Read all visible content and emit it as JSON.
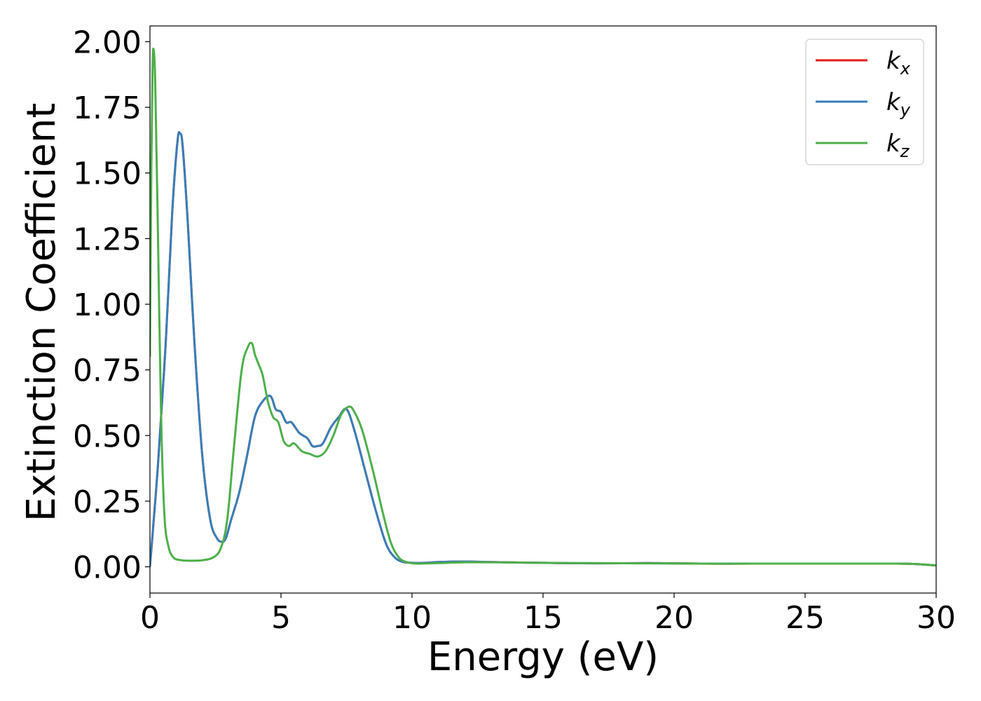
{
  "chart_data": {
    "type": "line",
    "title": "",
    "xlabel": "Energy (eV)",
    "ylabel": "Extinction Coefficient",
    "xlim": [
      0,
      30
    ],
    "ylim": [
      -0.1,
      2.06
    ],
    "xticks": [
      0,
      5,
      10,
      15,
      20,
      25,
      30
    ],
    "xtick_labels": [
      "0",
      "5",
      "10",
      "15",
      "20",
      "25",
      "30"
    ],
    "yticks": [
      0,
      0.25,
      0.5,
      0.75,
      1.0,
      1.25,
      1.5,
      1.75,
      2.0
    ],
    "ytick_labels": [
      "0.00",
      "0.25",
      "0.50",
      "0.75",
      "1.00",
      "1.25",
      "1.50",
      "1.75",
      "2.00"
    ],
    "grid": false,
    "legend_position": "top-right",
    "series": [
      {
        "name": "k_x",
        "legend_main": "k",
        "legend_sub": "x",
        "color": "#e41a1c",
        "x": [
          0,
          0.3,
          0.6,
          0.85,
          1.05,
          1.15,
          1.25,
          1.45,
          1.7,
          2.0,
          2.3,
          2.55,
          2.75,
          2.9,
          3.1,
          3.4,
          3.7,
          4.0,
          4.3,
          4.6,
          4.8,
          5.0,
          5.2,
          5.4,
          5.7,
          6.0,
          6.2,
          6.4,
          6.6,
          6.9,
          7.2,
          7.5,
          7.8,
          8.2,
          8.6,
          9.0,
          9.3,
          9.6,
          10.0,
          10.5,
          11.0,
          12.0,
          13.0,
          15.0,
          17.0,
          19.0,
          21.0,
          23.0,
          25.0,
          27.0,
          28.5,
          29.3,
          30.0
        ],
        "values": [
          0.0,
          0.38,
          0.85,
          1.35,
          1.62,
          1.65,
          1.6,
          1.3,
          0.85,
          0.42,
          0.18,
          0.11,
          0.095,
          0.11,
          0.18,
          0.28,
          0.42,
          0.57,
          0.63,
          0.65,
          0.6,
          0.59,
          0.55,
          0.55,
          0.51,
          0.49,
          0.46,
          0.46,
          0.47,
          0.53,
          0.57,
          0.6,
          0.52,
          0.37,
          0.22,
          0.09,
          0.04,
          0.02,
          0.015,
          0.015,
          0.018,
          0.02,
          0.018,
          0.015,
          0.013,
          0.014,
          0.012,
          0.012,
          0.012,
          0.012,
          0.012,
          0.01,
          0.005
        ]
      },
      {
        "name": "k_y",
        "legend_main": "k",
        "legend_sub": "y",
        "color": "#377eb8",
        "x": [
          0,
          0.3,
          0.6,
          0.85,
          1.05,
          1.15,
          1.25,
          1.45,
          1.7,
          2.0,
          2.3,
          2.55,
          2.75,
          2.9,
          3.1,
          3.4,
          3.7,
          4.0,
          4.3,
          4.6,
          4.8,
          5.0,
          5.2,
          5.4,
          5.7,
          6.0,
          6.2,
          6.4,
          6.6,
          6.9,
          7.2,
          7.5,
          7.8,
          8.2,
          8.6,
          9.0,
          9.3,
          9.6,
          10.0,
          10.5,
          11.0,
          12.0,
          13.0,
          15.0,
          17.0,
          19.0,
          21.0,
          23.0,
          25.0,
          27.0,
          28.5,
          29.3,
          30.0
        ],
        "values": [
          0.0,
          0.38,
          0.85,
          1.35,
          1.62,
          1.65,
          1.6,
          1.3,
          0.85,
          0.42,
          0.18,
          0.11,
          0.095,
          0.11,
          0.18,
          0.28,
          0.42,
          0.57,
          0.63,
          0.65,
          0.6,
          0.59,
          0.55,
          0.55,
          0.51,
          0.49,
          0.46,
          0.46,
          0.47,
          0.53,
          0.57,
          0.6,
          0.52,
          0.37,
          0.22,
          0.09,
          0.04,
          0.02,
          0.015,
          0.015,
          0.018,
          0.02,
          0.018,
          0.015,
          0.013,
          0.014,
          0.012,
          0.012,
          0.012,
          0.012,
          0.012,
          0.01,
          0.005
        ]
      },
      {
        "name": "k_z",
        "legend_main": "k",
        "legend_sub": "z",
        "color": "#4daf4a",
        "x": [
          0,
          0.05,
          0.1,
          0.14,
          0.2,
          0.3,
          0.42,
          0.55,
          0.7,
          0.9,
          1.2,
          1.6,
          2.0,
          2.4,
          2.7,
          2.95,
          3.2,
          3.5,
          3.75,
          3.9,
          4.0,
          4.15,
          4.3,
          4.5,
          4.7,
          4.9,
          5.1,
          5.3,
          5.5,
          5.8,
          6.1,
          6.4,
          6.7,
          7.0,
          7.3,
          7.6,
          7.8,
          8.1,
          8.5,
          8.9,
          9.2,
          9.5,
          9.8,
          10.2,
          11.0,
          12.0,
          13.0,
          15.0,
          17.0,
          19.0,
          21.0,
          23.0,
          25.0,
          27.0,
          28.5,
          29.3,
          30.0
        ],
        "values": [
          0.8,
          1.5,
          1.9,
          1.97,
          1.85,
          1.3,
          0.6,
          0.2,
          0.08,
          0.035,
          0.025,
          0.023,
          0.025,
          0.035,
          0.07,
          0.18,
          0.45,
          0.75,
          0.84,
          0.85,
          0.81,
          0.77,
          0.73,
          0.63,
          0.57,
          0.55,
          0.48,
          0.46,
          0.47,
          0.44,
          0.43,
          0.42,
          0.44,
          0.5,
          0.58,
          0.61,
          0.59,
          0.52,
          0.37,
          0.2,
          0.09,
          0.035,
          0.018,
          0.012,
          0.014,
          0.017,
          0.017,
          0.015,
          0.014,
          0.013,
          0.012,
          0.012,
          0.012,
          0.012,
          0.012,
          0.01,
          0.005
        ]
      }
    ]
  }
}
